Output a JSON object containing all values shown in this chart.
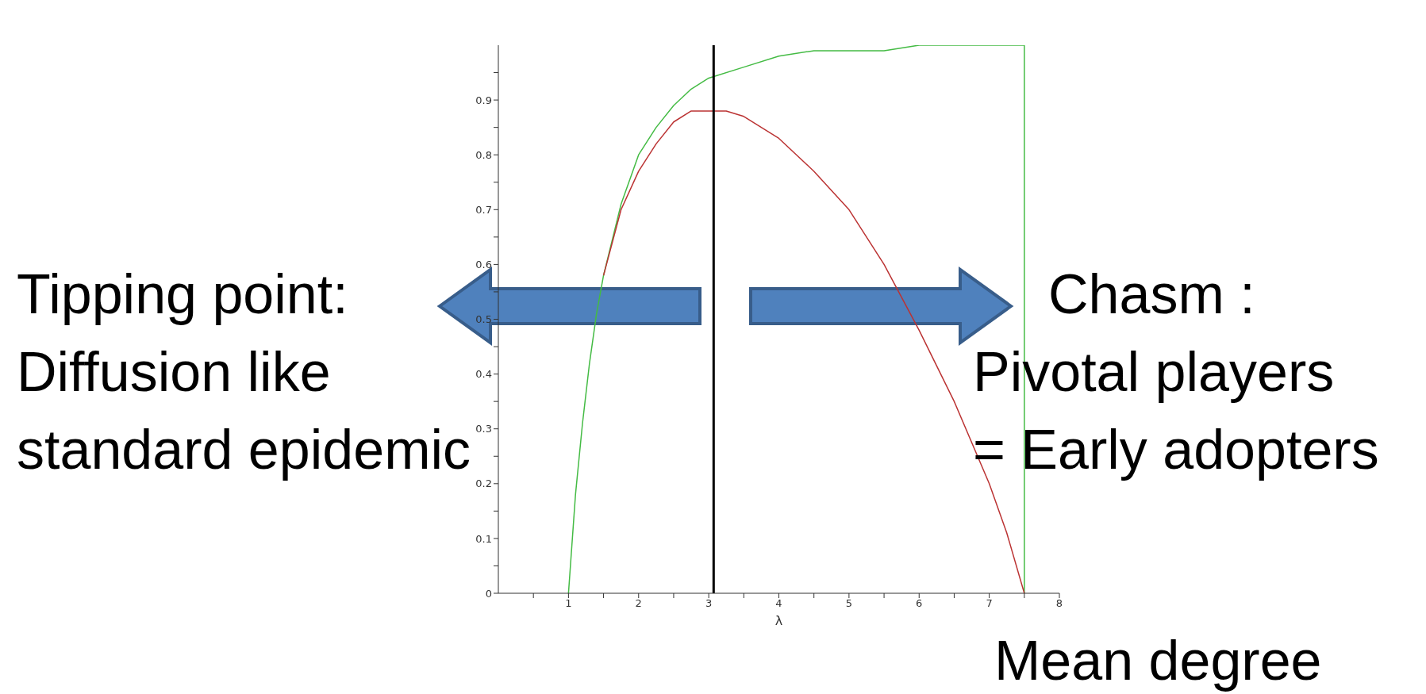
{
  "chart_data": {
    "type": "line",
    "xlabel": "λ",
    "xlim": [
      0,
      8
    ],
    "ylim": [
      0,
      1
    ],
    "xticks": [
      {
        "value": 0.5,
        "label": null
      },
      1,
      {
        "value": 1.5,
        "label": null
      },
      2,
      {
        "value": 2.5,
        "label": null
      },
      3,
      {
        "value": 3.5,
        "label": null
      },
      4,
      {
        "value": 4.5,
        "label": null
      },
      5,
      {
        "value": 5.5,
        "label": null
      },
      6,
      {
        "value": 6.5,
        "label": null
      },
      7,
      {
        "value": 7.5,
        "label": null
      },
      8
    ],
    "yticks": [
      0,
      {
        "value": 0.05,
        "label": null
      },
      0.1,
      {
        "value": 0.15,
        "label": null
      },
      0.2,
      {
        "value": 0.25,
        "label": null
      },
      0.3,
      {
        "value": 0.35,
        "label": null
      },
      0.4,
      {
        "value": 0.45,
        "label": null
      },
      0.5,
      {
        "value": 0.55,
        "label": null
      },
      0.6,
      {
        "value": 0.65,
        "label": null
      },
      0.7,
      {
        "value": 0.75,
        "label": null
      },
      0.8,
      {
        "value": 0.85,
        "label": null
      },
      0.9,
      {
        "value": 0.95,
        "label": null
      }
    ],
    "grid": false,
    "legend": false,
    "marker": "none",
    "line_style": "solid",
    "series": [
      {
        "color": "#44bb44",
        "x": [
          1,
          1.05,
          1.1,
          1.2,
          1.3,
          1.4,
          1.5,
          1.75,
          2,
          2.25,
          2.5,
          2.75,
          3,
          3.5,
          4,
          4.5,
          5,
          5.5,
          6,
          6.5,
          7,
          7.5,
          7.5
        ],
        "values": [
          0,
          0.09,
          0.18,
          0.31,
          0.42,
          0.51,
          0.58,
          0.71,
          0.8,
          0.85,
          0.89,
          0.92,
          0.94,
          0.96,
          0.98,
          0.99,
          0.99,
          0.99,
          1,
          1,
          1,
          1,
          0
        ]
      },
      {
        "color": "#bb3333",
        "x": [
          1.5,
          1.75,
          2,
          2.25,
          2.5,
          2.75,
          3,
          3.25,
          3.5,
          4,
          4.5,
          5,
          5.5,
          6,
          6.5,
          7,
          7.25,
          7.5
        ],
        "values": [
          0.58,
          0.7,
          0.77,
          0.82,
          0.86,
          0.88,
          0.88,
          0.88,
          0.87,
          0.83,
          0.77,
          0.7,
          0.6,
          0.48,
          0.35,
          0.2,
          0.11,
          0
        ]
      }
    ],
    "ref_lines": [
      {
        "axis": "x",
        "value": 3.07,
        "color": "#000000"
      }
    ],
    "annotations": [
      "Tipping point:\nDiffusion like\nstandard epidemic",
      "Chasm :\nPivotal players\n= Early adopters",
      "Mean degree"
    ]
  }
}
